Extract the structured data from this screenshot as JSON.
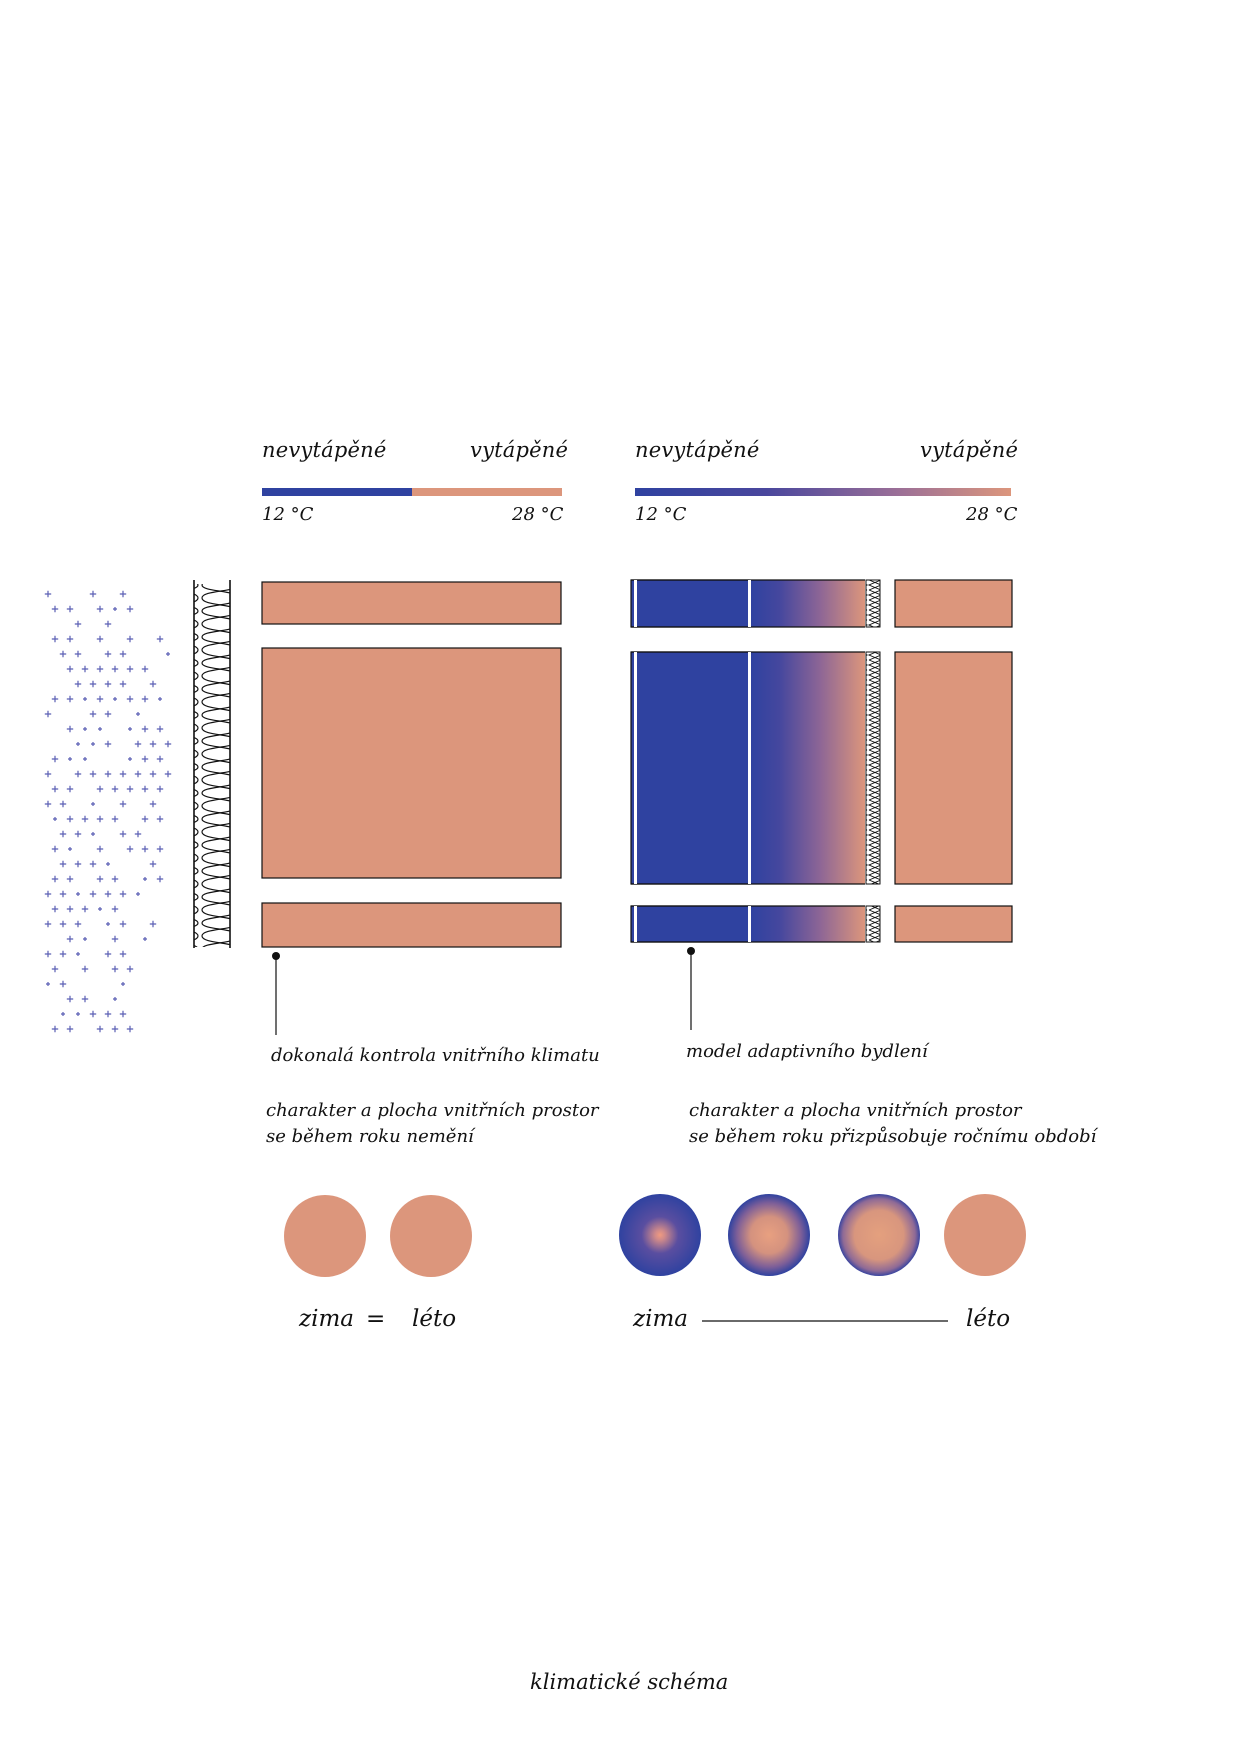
{
  "colors": {
    "cold": "#2f42a0",
    "warm": "#dc967c"
  },
  "left": {
    "label_unheated": "nevytápěné",
    "label_heated": "vytápěné",
    "temp_low": "12 °C",
    "temp_high": "28 °C",
    "callout": "dokonalá kontrola vnitřního klimatu",
    "description_line1": "charakter a plocha vnitřních prostor",
    "description_line2": "se během roku nemění",
    "season_winter": "zima",
    "equals": "=",
    "season_summer": "léto"
  },
  "right": {
    "label_unheated": "nevytápěné",
    "label_heated": "vytápěné",
    "temp_low": "12 °C",
    "temp_high": "28 °C",
    "callout": "model adaptivního bydlení",
    "description_line1": "charakter a plocha vnitřních prostor",
    "description_line2": "se během roku přizpůsobuje ročnímu období",
    "season_winter": "zima",
    "season_summer": "léto"
  },
  "caption": "klimatické schéma"
}
